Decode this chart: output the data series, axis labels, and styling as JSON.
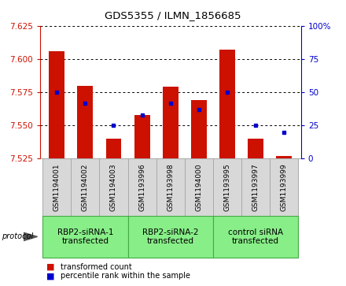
{
  "title": "GDS5355 / ILMN_1856685",
  "samples": [
    "GSM1194001",
    "GSM1194002",
    "GSM1194003",
    "GSM1193996",
    "GSM1193998",
    "GSM1194000",
    "GSM1193995",
    "GSM1193997",
    "GSM1193999"
  ],
  "red_values": [
    7.606,
    7.58,
    7.54,
    7.558,
    7.579,
    7.569,
    7.607,
    7.54,
    7.527
  ],
  "blue_values": [
    7.575,
    7.567,
    7.55,
    7.558,
    7.567,
    7.562,
    7.575,
    7.55,
    7.545
  ],
  "ymin": 7.525,
  "ymax": 7.625,
  "yticks": [
    7.525,
    7.55,
    7.575,
    7.6,
    7.625
  ],
  "right_yticks": [
    0,
    25,
    50,
    75,
    100
  ],
  "groups": [
    {
      "label": "RBP2-siRNA-1\ntransfected",
      "indices": [
        0,
        1,
        2
      ]
    },
    {
      "label": "RBP2-siRNA-2\ntransfected",
      "indices": [
        3,
        4,
        5
      ]
    },
    {
      "label": "control siRNA\ntransfected",
      "indices": [
        6,
        7,
        8
      ]
    }
  ],
  "bar_color": "#cc1100",
  "dot_color": "#0000cc",
  "bar_width": 0.55,
  "sample_box_color": "#d8d8d8",
  "group_box_color": "#88ee88",
  "group_box_border": "#44aa44",
  "sample_box_border": "#aaaaaa",
  "plot_bg": "#ffffff",
  "legend_red_label": "transformed count",
  "legend_blue_label": "percentile rank within the sample"
}
